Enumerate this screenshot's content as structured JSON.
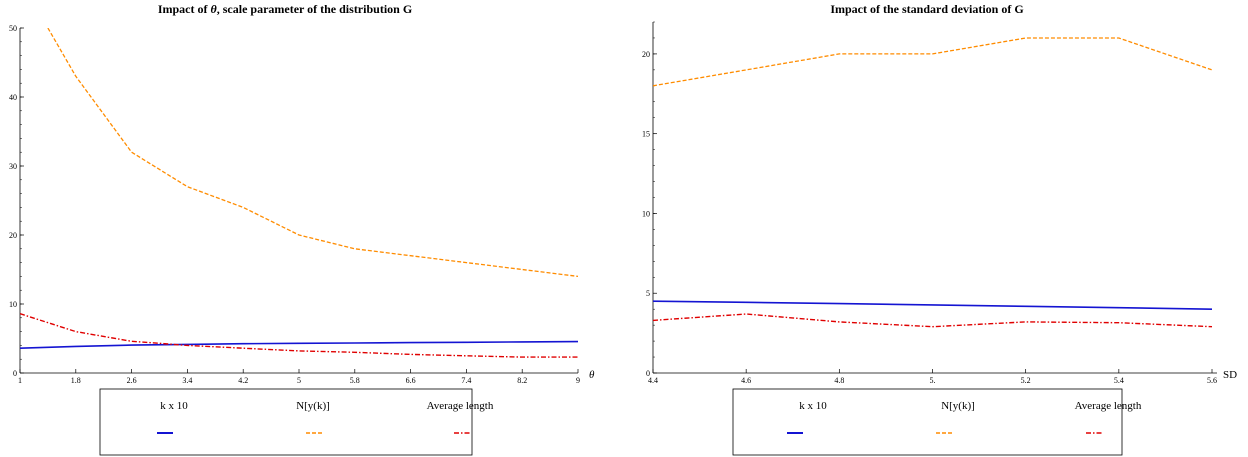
{
  "series_colors": {
    "k": "#1414d2",
    "N": "#ff8c00",
    "avg": "#e00000"
  },
  "chart_data": [
    {
      "type": "line",
      "title_pre": "Impact of ",
      "title_sym": "θ",
      "title_post": ", scale parameter of the distribution G",
      "xlabel": "θ",
      "ylabel": "",
      "xticks": [
        "1",
        "1.8",
        "2.6",
        "3.4",
        "4.2",
        "5",
        "5.8",
        "6.6",
        "7.4",
        "8.2",
        "9"
      ],
      "xlim": [
        1,
        9
      ],
      "ylim": [
        0,
        50
      ],
      "yticks": [
        0,
        10,
        20,
        30,
        40,
        50
      ],
      "legend_position": "bottom",
      "series": [
        {
          "name": "k x 10",
          "key": "k",
          "x": [
            1,
            1.8,
            2.6,
            3.4,
            4.2,
            5,
            5.8,
            6.6,
            7.4,
            8.2,
            9
          ],
          "y": [
            3.6,
            3.85,
            4.05,
            4.15,
            4.25,
            4.3,
            4.35,
            4.4,
            4.45,
            4.5,
            4.55
          ]
        },
        {
          "name": "N[y(k)]",
          "key": "N",
          "x": [
            1.4,
            1.8,
            2.6,
            3.4,
            4.2,
            5,
            5.8,
            6.6,
            7.4,
            8.2,
            9
          ],
          "y": [
            50,
            43,
            32,
            27,
            24,
            20,
            18,
            17,
            16,
            15,
            14
          ]
        },
        {
          "name": "Average length",
          "key": "avg",
          "x": [
            1,
            1.8,
            2.6,
            3.4,
            4.2,
            5,
            5.8,
            6.6,
            7.4,
            8.2,
            9
          ],
          "y": [
            8.6,
            6.0,
            4.6,
            4.0,
            3.6,
            3.2,
            3.0,
            2.7,
            2.5,
            2.3,
            2.3
          ]
        }
      ]
    },
    {
      "type": "line",
      "title_pre": "Impact of the standard deviation of G",
      "title_sym": "",
      "title_post": "",
      "xlabel": "SD",
      "ylabel": "",
      "xticks": [
        "4.4",
        "4.6",
        "4.8",
        "5.",
        "5.2",
        "5.4",
        "5.6"
      ],
      "xlim": [
        4.4,
        5.6
      ],
      "ylim": [
        0,
        22
      ],
      "yticks": [
        0,
        5,
        10,
        15,
        20
      ],
      "legend_position": "bottom",
      "series": [
        {
          "name": "k x 10",
          "key": "k",
          "x": [
            4.4,
            4.6,
            4.8,
            5.0,
            5.2,
            5.4,
            5.6
          ],
          "y": [
            4.5,
            4.43,
            4.35,
            4.27,
            4.18,
            4.09,
            4.0
          ]
        },
        {
          "name": "N[y(k)]",
          "key": "N",
          "x": [
            4.4,
            4.6,
            4.8,
            5.0,
            5.2,
            5.4,
            5.6
          ],
          "y": [
            18,
            19,
            20,
            20,
            21,
            21,
            19
          ]
        },
        {
          "name": "Average length",
          "key": "avg",
          "x": [
            4.4,
            4.6,
            4.8,
            5.0,
            5.2,
            5.4,
            5.6
          ],
          "y": [
            3.3,
            3.7,
            3.2,
            2.9,
            3.2,
            3.15,
            2.9
          ]
        }
      ]
    }
  ]
}
